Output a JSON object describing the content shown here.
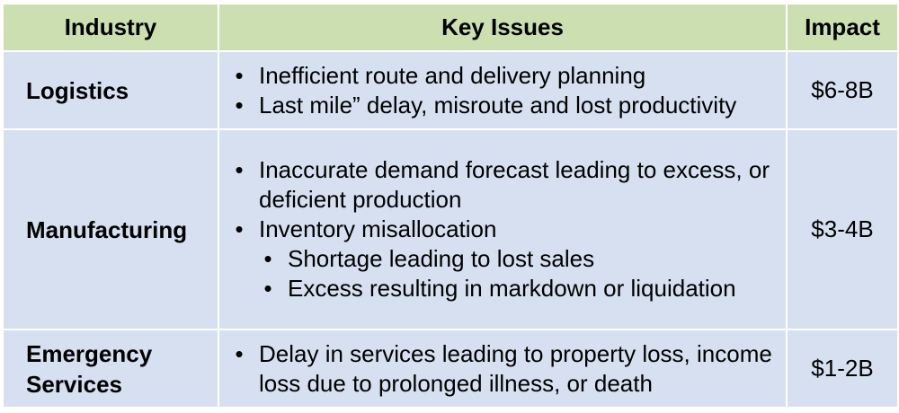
{
  "colors": {
    "header_bg": "#ccdfb0",
    "body_bg": "#d6e0f0",
    "border": "#ffffff",
    "text": "#000000"
  },
  "table": {
    "headers": {
      "industry": "Industry",
      "issues": "Key Issues",
      "impact": "Impact"
    },
    "rows": [
      {
        "industry": "Logistics",
        "issues": [
          "Inefficient route and delivery planning",
          "Last mile” delay, misroute and lost productivity"
        ],
        "impact": "$6-8B"
      },
      {
        "industry": "Manufacturing",
        "issues": [
          "Inaccurate demand forecast leading to excess, or deficient production",
          "Inventory misallocation"
        ],
        "sub_issues": [
          "Shortage leading to lost sales",
          "Excess resulting in markdown or liquidation"
        ],
        "impact": "$3-4B"
      },
      {
        "industry_line1": "Emergency",
        "industry_line2": "Services",
        "issues": [
          "Delay in services leading to property loss, income loss due to prolonged illness, or death"
        ],
        "impact": "$1-2B"
      }
    ]
  }
}
